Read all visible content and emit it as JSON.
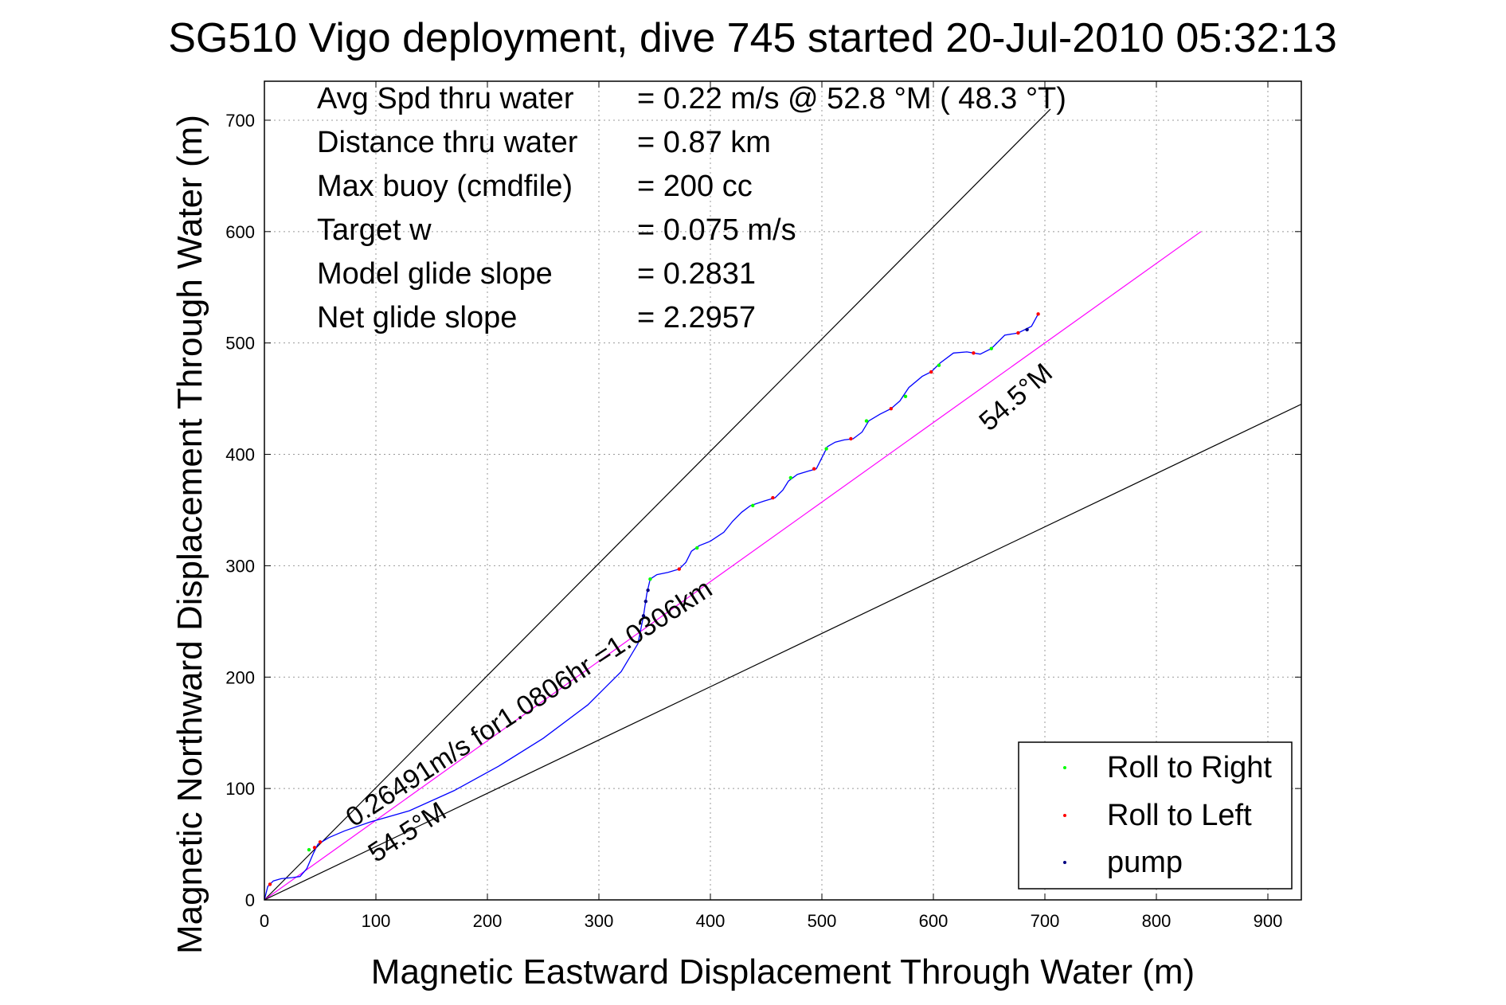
{
  "chart_data": {
    "type": "scatter",
    "title": "SG510 Vigo deployment, dive 745 started 20-Jul-2010 05:32:13",
    "xlabel": "Magnetic Eastward Displacement Through Water (m)",
    "ylabel": "Magnetic Northward Displacement Through Water (m)",
    "xlim": [
      0,
      930
    ],
    "ylim": [
      0,
      735
    ],
    "xticks": [
      0,
      100,
      200,
      300,
      400,
      500,
      600,
      700,
      800,
      900
    ],
    "yticks": [
      0,
      100,
      200,
      300,
      400,
      500,
      600,
      700
    ],
    "grid": true,
    "legend_position": "bottom-right",
    "colors": {
      "track": "#0000ff",
      "heading_line": "#ff00ff",
      "bound_line": "#000000",
      "roll_right": "#00ff00",
      "roll_left": "#ff0000",
      "pump": "#000080"
    },
    "info": [
      {
        "label": "Avg Spd thru water",
        "value": "=  0.22 m/s @  52.8 °M ( 48.3 °T)"
      },
      {
        "label": "Distance thru water",
        "value": "=  0.87 km"
      },
      {
        "label": "Max buoy (cmdfile)",
        "value": "= 200 cc"
      },
      {
        "label": "Target w",
        "value": "= 0.075 m/s"
      },
      {
        "label": "Model glide slope",
        "value": "= 0.2831"
      },
      {
        "label": "Net glide slope",
        "value": "= 2.2957"
      }
    ],
    "annotations": {
      "upper_heading": "54.5°M",
      "lower_heading": "54.5°M",
      "speed_note": "0.26491m/s for1.0806hr =1.0306km"
    },
    "reference_lines": [
      {
        "name": "upper-bound",
        "points": [
          [
            0,
            0
          ],
          [
            705,
            710
          ]
        ]
      },
      {
        "name": "heading-line",
        "points": [
          [
            0,
            0
          ],
          [
            840,
            600
          ]
        ]
      },
      {
        "name": "lower-bound",
        "points": [
          [
            0,
            0
          ],
          [
            930,
            445
          ]
        ]
      }
    ],
    "track": [
      [
        0,
        0
      ],
      [
        3,
        12
      ],
      [
        8,
        17
      ],
      [
        15,
        19
      ],
      [
        25,
        20
      ],
      [
        32,
        21
      ],
      [
        38,
        28
      ],
      [
        44,
        42
      ],
      [
        48,
        50
      ],
      [
        58,
        56
      ],
      [
        72,
        62
      ],
      [
        95,
        70
      ],
      [
        130,
        80
      ],
      [
        170,
        98
      ],
      [
        210,
        120
      ],
      [
        250,
        145
      ],
      [
        290,
        175
      ],
      [
        320,
        205
      ],
      [
        335,
        230
      ],
      [
        340,
        255
      ],
      [
        343,
        275
      ],
      [
        346,
        288
      ],
      [
        352,
        292
      ],
      [
        362,
        294
      ],
      [
        372,
        297
      ],
      [
        378,
        303
      ],
      [
        383,
        313
      ],
      [
        390,
        318
      ],
      [
        400,
        322
      ],
      [
        412,
        330
      ],
      [
        420,
        340
      ],
      [
        428,
        348
      ],
      [
        436,
        354
      ],
      [
        448,
        358
      ],
      [
        458,
        361
      ],
      [
        465,
        368
      ],
      [
        470,
        376
      ],
      [
        478,
        382
      ],
      [
        488,
        385
      ],
      [
        495,
        387
      ],
      [
        500,
        397
      ],
      [
        505,
        407
      ],
      [
        512,
        411
      ],
      [
        520,
        413
      ],
      [
        528,
        414
      ],
      [
        536,
        420
      ],
      [
        542,
        430
      ],
      [
        552,
        436
      ],
      [
        562,
        441
      ],
      [
        570,
        448
      ],
      [
        578,
        460
      ],
      [
        590,
        470
      ],
      [
        598,
        474
      ],
      [
        606,
        482
      ],
      [
        618,
        491
      ],
      [
        630,
        492
      ],
      [
        642,
        490
      ],
      [
        652,
        495
      ],
      [
        664,
        507
      ],
      [
        676,
        509
      ],
      [
        688,
        515
      ],
      [
        694,
        526
      ]
    ],
    "series": [
      {
        "name": "Roll to Right",
        "points": [
          [
            40,
            45
          ],
          [
            346,
            288
          ],
          [
            388,
            316
          ],
          [
            438,
            354
          ],
          [
            472,
            379
          ],
          [
            504,
            405
          ],
          [
            540,
            430
          ],
          [
            575,
            452
          ],
          [
            605,
            480
          ],
          [
            652,
            495
          ]
        ]
      },
      {
        "name": "Roll to Left",
        "points": [
          [
            5,
            14
          ],
          [
            45,
            47
          ],
          [
            50,
            52
          ],
          [
            372,
            297
          ],
          [
            456,
            361
          ],
          [
            493,
            387
          ],
          [
            526,
            414
          ],
          [
            562,
            441
          ],
          [
            598,
            474
          ],
          [
            636,
            491
          ],
          [
            676,
            509
          ],
          [
            694,
            526
          ]
        ]
      },
      {
        "name": "pump",
        "points": [
          [
            340,
            255
          ],
          [
            342,
            268
          ],
          [
            344,
            278
          ],
          [
            684,
            512
          ]
        ]
      }
    ]
  }
}
